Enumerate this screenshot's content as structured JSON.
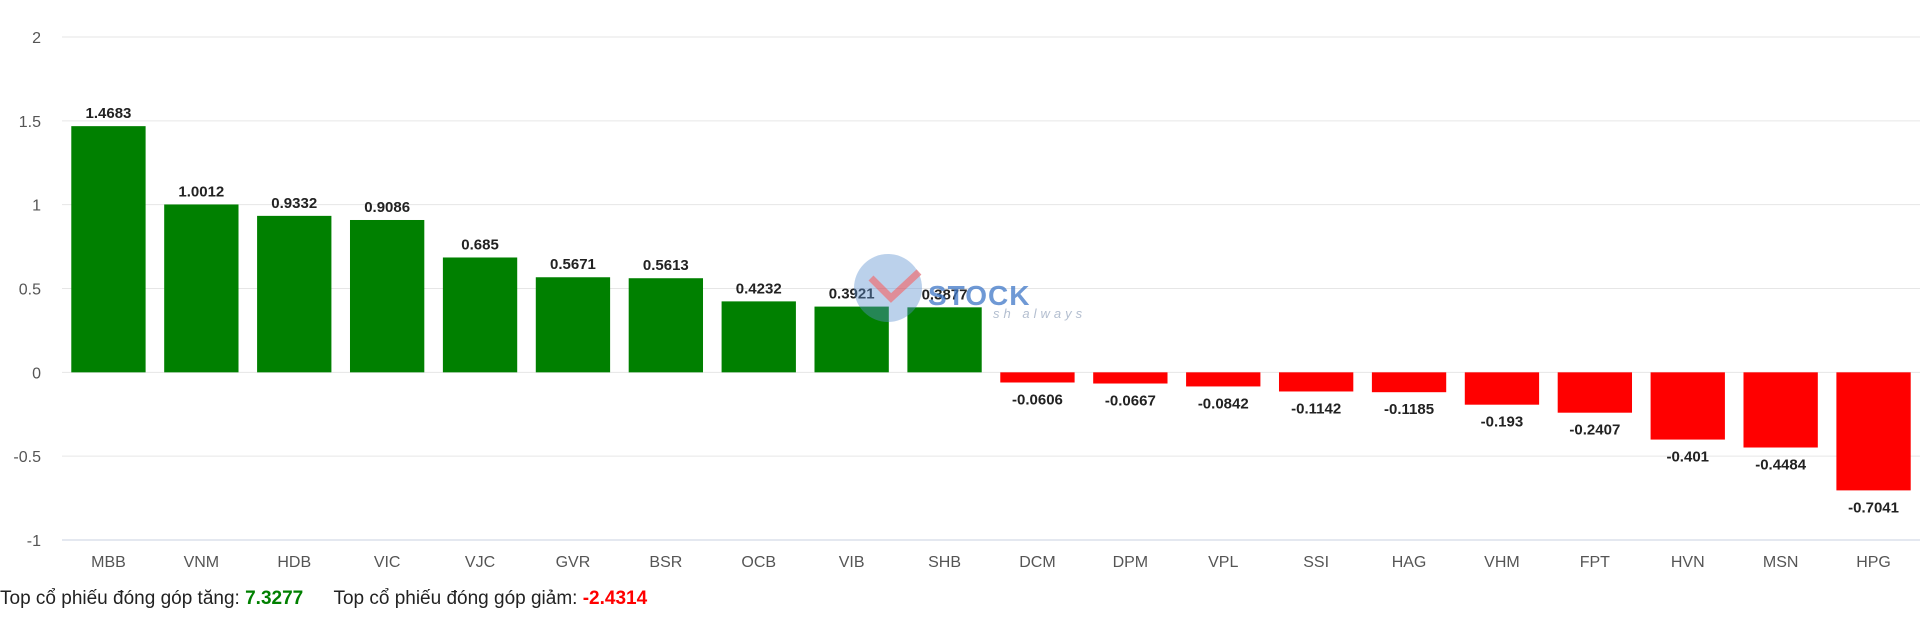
{
  "chart_data": {
    "type": "bar",
    "categories": [
      "MBB",
      "VNM",
      "HDB",
      "VIC",
      "VJC",
      "GVR",
      "BSR",
      "OCB",
      "VIB",
      "SHB",
      "DCM",
      "DPM",
      "VPL",
      "SSI",
      "HAG",
      "VHM",
      "FPT",
      "HVN",
      "MSN",
      "HPG"
    ],
    "values": [
      1.4683,
      1.0012,
      0.9332,
      0.9086,
      0.685,
      0.5671,
      0.5613,
      0.4232,
      0.3921,
      0.3877,
      -0.0606,
      -0.0667,
      -0.0842,
      -0.1142,
      -0.1185,
      -0.193,
      -0.2407,
      -0.401,
      -0.4484,
      -0.7041
    ],
    "value_labels": [
      "1.4683",
      "1.0012",
      "0.9332",
      "0.9086",
      "0.685",
      "0.5671",
      "0.5613",
      "0.4232",
      "0.3921",
      "0.3877",
      "-0.0606",
      "-0.0667",
      "-0.0842",
      "-0.1142",
      "-0.1185",
      "-0.193",
      "-0.2407",
      "-0.401",
      "-0.4484",
      "-0.7041"
    ],
    "yticks": [
      2,
      1.5,
      1,
      0.5,
      0,
      -0.5,
      -1
    ],
    "ytick_labels": [
      "2",
      "1.5",
      "1",
      "0.5",
      "0",
      "-0.5",
      "-1"
    ],
    "ylim": [
      -1,
      2
    ],
    "grid": true,
    "colors": {
      "positive": "#008000",
      "negative": "#ff0000"
    }
  },
  "watermark": {
    "brand": "STOCK",
    "tagline": "sh always"
  },
  "summary": {
    "gain_label": "Top cổ phiếu đóng góp tăng:",
    "gain_value": "7.3277",
    "loss_label": "Top cổ phiếu đóng góp giảm:",
    "loss_value": "-2.4314"
  }
}
